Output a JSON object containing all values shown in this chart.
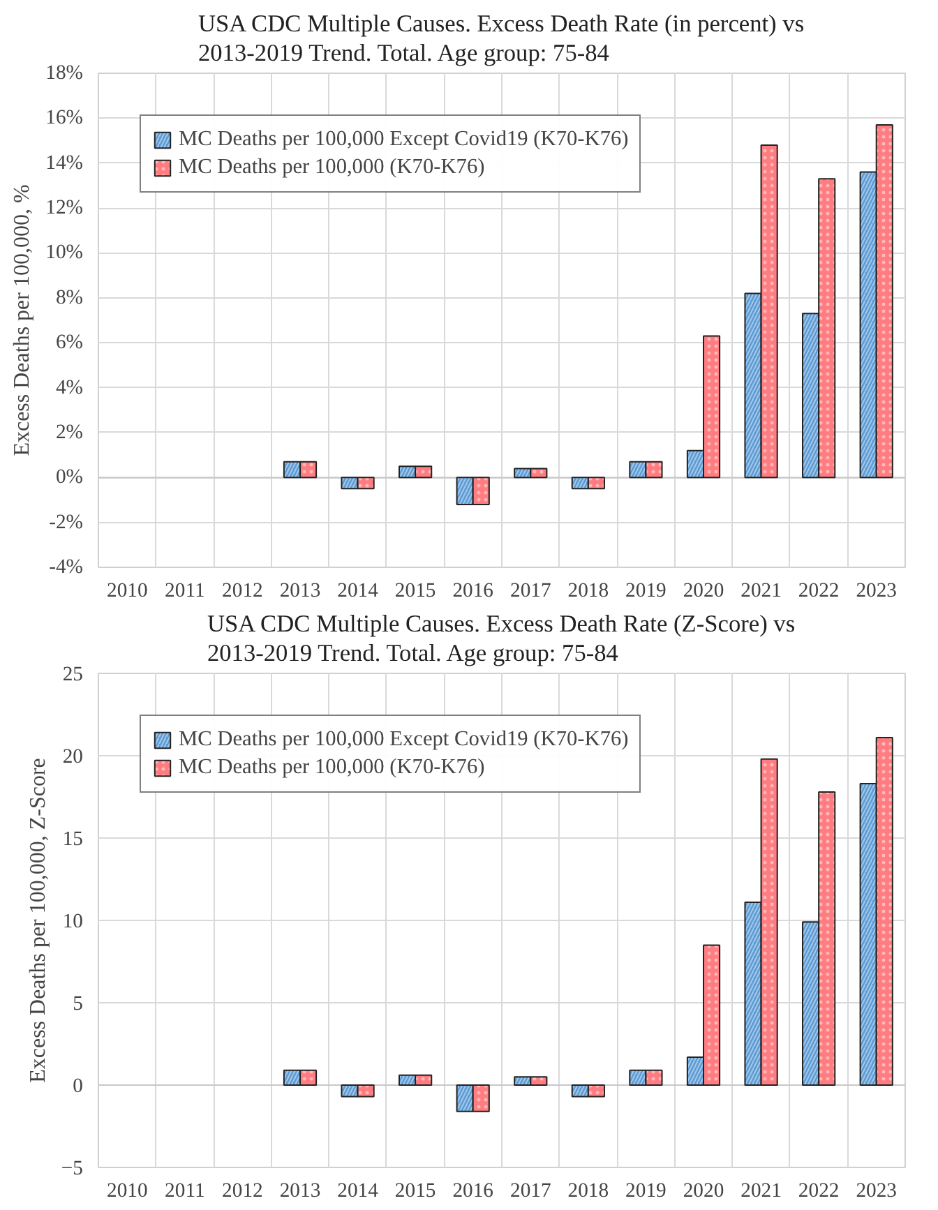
{
  "chart_data": [
    {
      "type": "bar",
      "title": "USA CDC Multiple Causes. Excess Death Rate (in percent) vs 2013-2019 Trend. Total. Age group: 75-84",
      "ylabel": "Excess Deaths per 100,000, %",
      "categories": [
        "2010",
        "2011",
        "2012",
        "2013",
        "2014",
        "2015",
        "2016",
        "2017",
        "2018",
        "2019",
        "2020",
        "2021",
        "2022",
        "2023"
      ],
      "series": [
        {
          "name": "MC Deaths per 100,000 Except Covid19 (K70-K76)",
          "color": "#5b9bd5",
          "values": [
            null,
            null,
            null,
            0.7,
            -0.5,
            0.5,
            -1.2,
            0.4,
            -0.5,
            0.7,
            1.2,
            8.2,
            7.3,
            13.6
          ]
        },
        {
          "name": "MC Deaths per 100,000 (K70-K76)",
          "color": "#ff7c80",
          "values": [
            null,
            null,
            null,
            0.7,
            -0.5,
            0.5,
            -1.2,
            0.4,
            -0.5,
            0.7,
            6.3,
            14.8,
            13.3,
            15.7
          ]
        }
      ],
      "ylim": [
        -4,
        18
      ],
      "yticks": [
        {
          "value": -4,
          "label": "-4%"
        },
        {
          "value": -2,
          "label": "-2%"
        },
        {
          "value": 0,
          "label": "0%"
        },
        {
          "value": 2,
          "label": "2%"
        },
        {
          "value": 4,
          "label": "4%"
        },
        {
          "value": 6,
          "label": "6%"
        },
        {
          "value": 8,
          "label": "8%"
        },
        {
          "value": 10,
          "label": "10%"
        },
        {
          "value": 12,
          "label": "12%"
        },
        {
          "value": 14,
          "label": "14%"
        },
        {
          "value": 16,
          "label": "16%"
        },
        {
          "value": 18,
          "label": "18%"
        }
      ],
      "grid": true,
      "legend": "top left"
    },
    {
      "type": "bar",
      "title": "USA CDC Multiple Causes. Excess Death Rate (Z-Score) vs 2013-2019 Trend. Total. Age group: 75-84",
      "ylabel": "Excess Deaths per 100,000, Z-Score",
      "categories": [
        "2010",
        "2011",
        "2012",
        "2013",
        "2014",
        "2015",
        "2016",
        "2017",
        "2018",
        "2019",
        "2020",
        "2021",
        "2022",
        "2023"
      ],
      "series": [
        {
          "name": "MC Deaths per 100,000 Except Covid19 (K70-K76)",
          "color": "#5b9bd5",
          "values": [
            null,
            null,
            null,
            0.9,
            -0.7,
            0.6,
            -1.6,
            0.5,
            -0.7,
            0.9,
            1.7,
            11.1,
            9.9,
            18.3
          ]
        },
        {
          "name": "MC Deaths per 100,000 (K70-K76)",
          "color": "#ff7c80",
          "values": [
            null,
            null,
            null,
            0.9,
            -0.7,
            0.6,
            -1.6,
            0.5,
            -0.7,
            0.9,
            8.5,
            19.8,
            17.8,
            21.1
          ]
        }
      ],
      "ylim": [
        -5,
        25
      ],
      "yticks": [
        -5,
        0,
        5,
        10,
        15,
        20,
        25
      ],
      "grid": true,
      "legend": "top left"
    }
  ]
}
